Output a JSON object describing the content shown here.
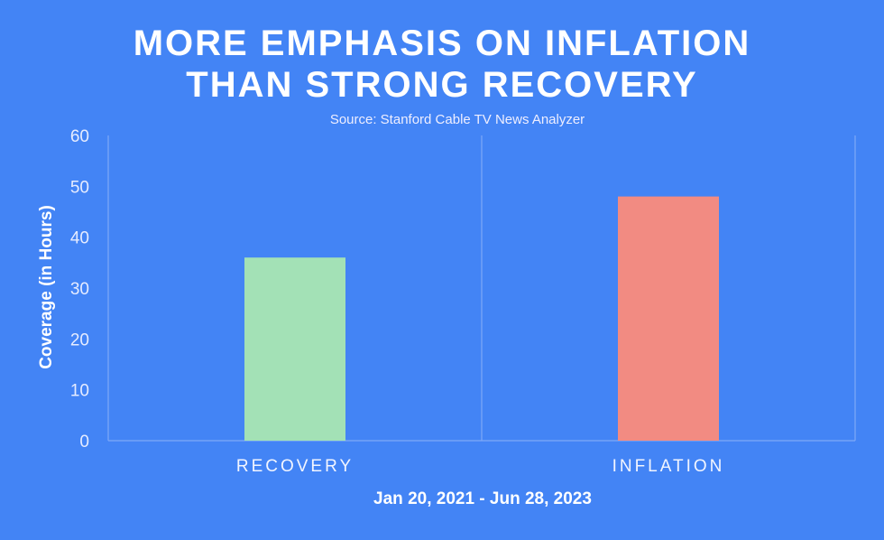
{
  "chart_data": {
    "type": "bar",
    "title_lines": [
      "MORE EMPHASIS ON INFLATION",
      "THAN STRONG RECOVERY"
    ],
    "subtitle": "Source: Stanford Cable TV News Analyzer",
    "categories": [
      "RECOVERY",
      "INFLATION"
    ],
    "values": [
      36,
      48
    ],
    "colors": [
      "#a3e1b6",
      "#f28b82"
    ],
    "ylabel": "Coverage (in Hours)",
    "xlabel": "Jan 20, 2021 - Jun 28, 2023",
    "ylim": [
      0,
      60
    ],
    "yticks": [
      "0",
      "10",
      "20",
      "30",
      "40",
      "50",
      "60"
    ],
    "grid": "vertical category separators"
  }
}
